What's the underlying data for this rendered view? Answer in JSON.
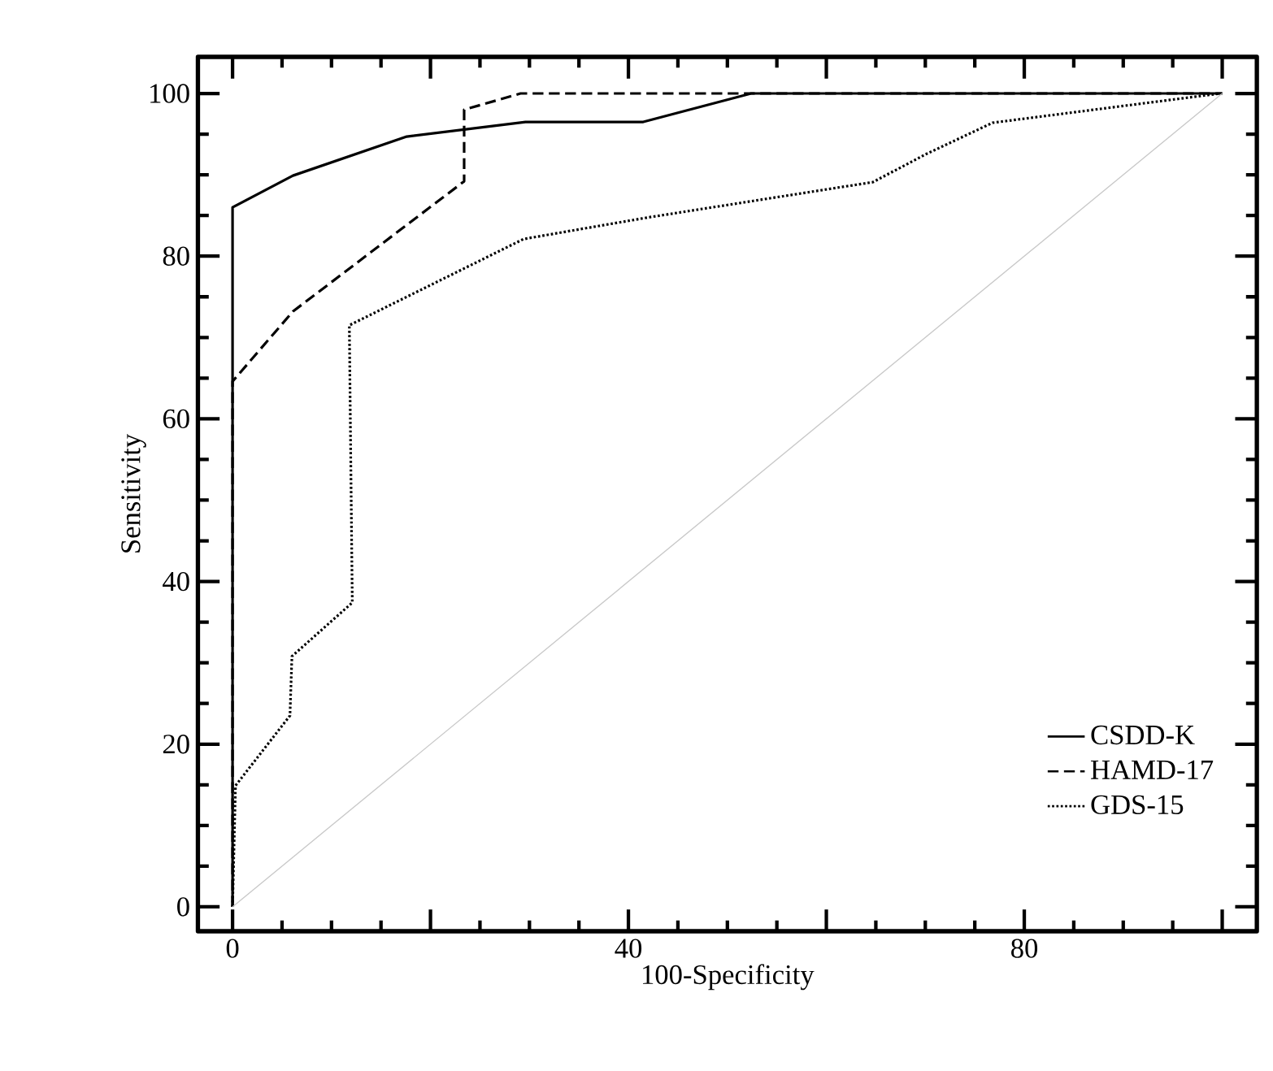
{
  "chart_data": {
    "type": "line",
    "xlabel": "100-Specificity",
    "ylabel": "Sensitivity",
    "xlim": [
      -3.5,
      103.5
    ],
    "ylim": [
      -3,
      104.5
    ],
    "xticks": [
      0,
      {
        "value": 20,
        "label": null
      },
      40,
      {
        "value": 60,
        "label": null
      },
      80,
      {
        "value": 100,
        "label": null
      }
    ],
    "yticks": [
      0,
      20,
      40,
      60,
      80,
      100
    ],
    "legend": "bottom right",
    "grid": false,
    "marker": "none",
    "series": [
      {
        "name": "CSDD-K",
        "color": "#000000",
        "line_style": "solid",
        "x": [
          0,
          0,
          6.1,
          17.6,
          29.6,
          41.5,
          52.4,
          100
        ],
        "values": [
          0,
          86,
          89.9,
          94.7,
          96.5,
          96.5,
          100,
          100
        ]
      },
      {
        "name": "HAMD-17",
        "color": "#000000",
        "line_style": "dashed",
        "x": [
          0,
          0,
          6.1,
          23.4,
          23.4,
          29.1,
          100
        ],
        "values": [
          0,
          64.6,
          73.2,
          89.2,
          98,
          100,
          100
        ]
      },
      {
        "name": "GDS-15",
        "color": "#000000",
        "line_style": "dotted",
        "x": [
          0,
          0.3,
          5.8,
          6,
          12.1,
          11.8,
          29.4,
          36,
          42.2,
          64.7,
          70,
          76.8,
          99.8
        ],
        "values": [
          0,
          14.9,
          23.5,
          30.8,
          37.4,
          71.5,
          82.1,
          83.5,
          84.8,
          89.1,
          92.5,
          96.4,
          100
        ]
      },
      {
        "color": "#c8c8c8",
        "line_style": "solid",
        "x": [
          0,
          100
        ],
        "values": [
          0,
          100
        ]
      }
    ]
  }
}
